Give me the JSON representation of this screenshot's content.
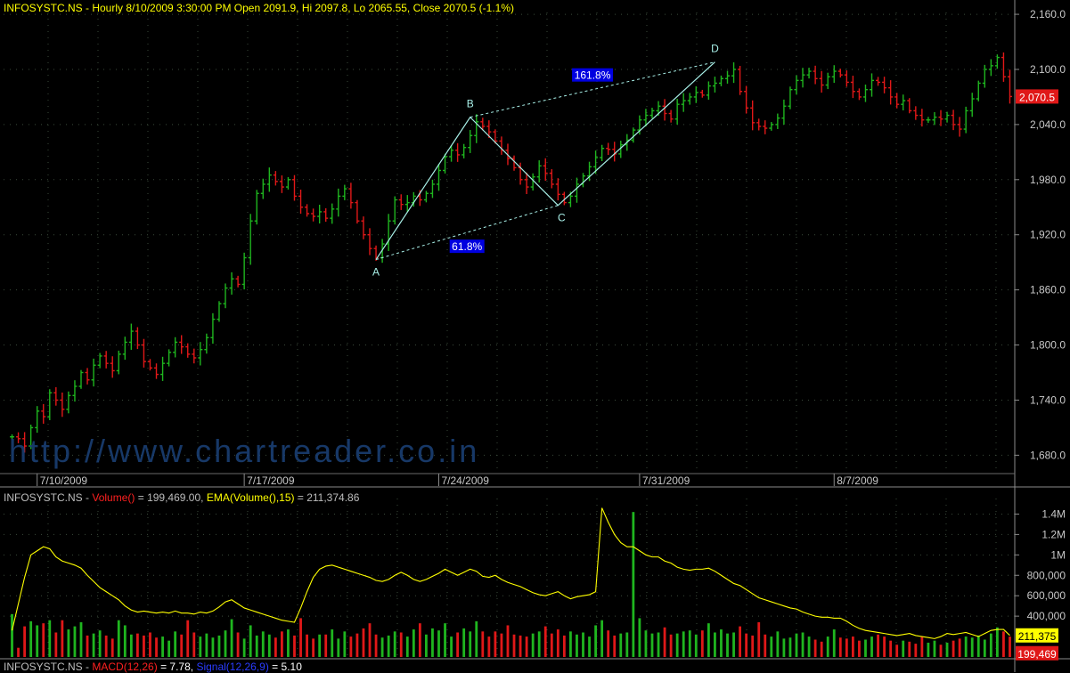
{
  "header": {
    "price_title": "INFOSYSTC.NS - Hourly 8/10/2009 3:30:00 PM Open 2091.9, Hi 2097.8, Lo 2065.55, Close 2070.5 (-1.1%)",
    "volume_symbol": "INFOSYSTC.NS -",
    "volume_name": "Volume()",
    "volume_value": "= 199,469.00,",
    "ema_name": "EMA(Volume(),15)",
    "ema_value": "= 211,374.86",
    "macd_symbol": "INFOSYSTC.NS -",
    "macd_name": "MACD(12,26)",
    "macd_value": "= 7.78,",
    "signal_name": "Signal(12,26,9)",
    "signal_value": "= 5.10"
  },
  "watermark": "http://www.chartreader.co.in",
  "colors": {
    "background": "#000000",
    "up_bar": "#1fb51f",
    "down_bar": "#e01818",
    "ema_line": "#ffff00",
    "pattern_line": "#a8f0e8",
    "ratio_box": "#0000e0",
    "last_price_box": "#e01818",
    "last_ema_box": "#ffff00",
    "grid": "#3a4a3a",
    "axis_text": "#c8c8c8"
  },
  "chart_data": [
    {
      "type": "ohlc",
      "timeframe": "Hourly",
      "y_ticks": [
        "1,680.0",
        "1,740.0",
        "1,800.0",
        "1,860.0",
        "1,920.0",
        "1,980.0",
        "2,040.0",
        "2,100.0",
        "2,160.0"
      ],
      "ylim": [
        1660,
        2162
      ],
      "x_tick_labels": [
        "7/10/2009",
        "7/17/2009",
        "7/24/2009",
        "7/31/2009",
        "8/7/2009"
      ],
      "last_close": 2070.5,
      "last_close_label": "2,070.5",
      "pattern": {
        "points": [
          {
            "label": "A",
            "value": 1893
          },
          {
            "label": "B",
            "value": 2048
          },
          {
            "label": "C",
            "value": 1952
          },
          {
            "label": "D",
            "value": 2108
          }
        ],
        "ratios": [
          "61.8%",
          "161.8%"
        ]
      },
      "closes": [
        1700,
        1698,
        1690,
        1710,
        1728,
        1722,
        1748,
        1740,
        1730,
        1745,
        1755,
        1770,
        1762,
        1778,
        1788,
        1780,
        1772,
        1790,
        1803,
        1815,
        1800,
        1782,
        1775,
        1768,
        1780,
        1792,
        1803,
        1798,
        1790,
        1786,
        1795,
        1808,
        1828,
        1845,
        1862,
        1872,
        1866,
        1895,
        1935,
        1965,
        1975,
        1985,
        1978,
        1972,
        1980,
        1962,
        1950,
        1943,
        1940,
        1945,
        1938,
        1948,
        1962,
        1970,
        1955,
        1935,
        1920,
        1905,
        1895,
        1910,
        1935,
        1958,
        1953,
        1955,
        1962,
        1958,
        1965,
        1975,
        1990,
        2005,
        2012,
        2007,
        2015,
        2028,
        2043,
        2038,
        2032,
        2022,
        2012,
        2003,
        1993,
        1980,
        1972,
        1983,
        1995,
        1987,
        1975,
        1964,
        1955,
        1962,
        1975,
        1984,
        1994,
        2004,
        2014,
        2013,
        2008,
        2018,
        2023,
        2034,
        2045,
        2050,
        2055,
        2060,
        2052,
        2046,
        2062,
        2066,
        2070,
        2075,
        2072,
        2082,
        2085,
        2090,
        2093,
        2100,
        2076,
        2058,
        2042,
        2038,
        2036,
        2040,
        2047,
        2060,
        2078,
        2088,
        2094,
        2098,
        2090,
        2083,
        2092,
        2098,
        2094,
        2086,
        2076,
        2070,
        2078,
        2088,
        2086,
        2080,
        2070,
        2062,
        2066,
        2055,
        2050,
        2045,
        2045,
        2048,
        2046,
        2050,
        2040,
        2035,
        2055,
        2068,
        2085,
        2100,
        2104,
        2113,
        2092,
        2070.5
      ],
      "price_axis_note": "closes listed in chronological order, one per hourly bar"
    },
    {
      "type": "bar+line",
      "title": "Volume() with EMA(Volume(),15)",
      "y_ticks": [
        "400,000",
        "600,000",
        "800,000",
        "1M",
        "1.2M",
        "1.4M"
      ],
      "ylim": [
        0,
        1500000
      ],
      "last_volume": 199469,
      "last_volume_label": "199,469",
      "last_ema": 211375,
      "last_ema_label": "211,375",
      "volumes": [
        420000,
        90000,
        300000,
        350000,
        310000,
        330000,
        360000,
        240000,
        360000,
        270000,
        300000,
        340000,
        210000,
        230000,
        260000,
        210000,
        180000,
        360000,
        310000,
        220000,
        230000,
        210000,
        240000,
        190000,
        200000,
        160000,
        250000,
        220000,
        360000,
        240000,
        200000,
        230000,
        190000,
        210000,
        260000,
        370000,
        240000,
        180000,
        310000,
        210000,
        250000,
        220000,
        190000,
        250000,
        270000,
        210000,
        380000,
        220000,
        180000,
        220000,
        220000,
        270000,
        180000,
        250000,
        200000,
        230000,
        280000,
        330000,
        220000,
        190000,
        210000,
        250000,
        240000,
        200000,
        270000,
        330000,
        220000,
        280000,
        260000,
        330000,
        200000,
        240000,
        280000,
        250000,
        350000,
        250000,
        200000,
        250000,
        230000,
        310000,
        220000,
        210000,
        200000,
        230000,
        250000,
        300000,
        230000,
        270000,
        210000,
        250000,
        220000,
        240000,
        200000,
        310000,
        360000,
        260000,
        210000,
        230000,
        240000,
        1420000,
        380000,
        260000,
        230000,
        240000,
        290000,
        220000,
        230000,
        250000,
        260000,
        220000,
        260000,
        330000,
        240000,
        270000,
        230000,
        240000,
        300000,
        230000,
        210000,
        340000,
        220000,
        200000,
        250000,
        180000,
        190000,
        230000,
        240000,
        200000,
        170000,
        150000,
        200000,
        270000,
        190000,
        180000,
        200000,
        160000,
        170000,
        200000,
        220000,
        200000,
        160000,
        120000,
        160000,
        150000,
        130000,
        200000,
        140000,
        160000,
        120000,
        140000,
        160000,
        180000,
        200000,
        190000,
        210000,
        170000,
        230000,
        290000,
        250000,
        199469
      ],
      "ema": [
        260000,
        520000,
        780000,
        1000000,
        1040000,
        1080000,
        1060000,
        980000,
        940000,
        920000,
        900000,
        870000,
        800000,
        740000,
        680000,
        640000,
        600000,
        560000,
        500000,
        460000,
        440000,
        450000,
        440000,
        430000,
        440000,
        430000,
        450000,
        430000,
        430000,
        420000,
        440000,
        430000,
        450000,
        490000,
        540000,
        560000,
        520000,
        480000,
        460000,
        440000,
        420000,
        400000,
        380000,
        360000,
        350000,
        340000,
        480000,
        640000,
        780000,
        860000,
        890000,
        900000,
        880000,
        860000,
        840000,
        820000,
        800000,
        780000,
        750000,
        740000,
        760000,
        800000,
        830000,
        800000,
        760000,
        740000,
        760000,
        790000,
        820000,
        860000,
        830000,
        800000,
        830000,
        860000,
        840000,
        790000,
        780000,
        800000,
        760000,
        730000,
        710000,
        690000,
        660000,
        630000,
        610000,
        600000,
        620000,
        640000,
        600000,
        570000,
        590000,
        600000,
        610000,
        640000,
        1460000,
        1320000,
        1200000,
        1120000,
        1080000,
        1080000,
        1040000,
        1000000,
        980000,
        980000,
        940000,
        920000,
        880000,
        860000,
        850000,
        860000,
        860000,
        870000,
        840000,
        800000,
        760000,
        720000,
        700000,
        660000,
        620000,
        580000,
        560000,
        540000,
        520000,
        500000,
        480000,
        470000,
        440000,
        420000,
        400000,
        390000,
        390000,
        380000,
        380000,
        350000,
        310000,
        280000,
        260000,
        250000,
        240000,
        230000,
        220000,
        210000,
        220000,
        230000,
        210000,
        200000,
        190000,
        180000,
        200000,
        230000,
        220000,
        230000,
        240000,
        220000,
        200000,
        230000,
        260000,
        270000,
        270000,
        211375
      ]
    },
    {
      "type": "line",
      "title": "MACD(12,26) / Signal(12,26,9)",
      "macd": 7.78,
      "signal": 5.1
    }
  ]
}
